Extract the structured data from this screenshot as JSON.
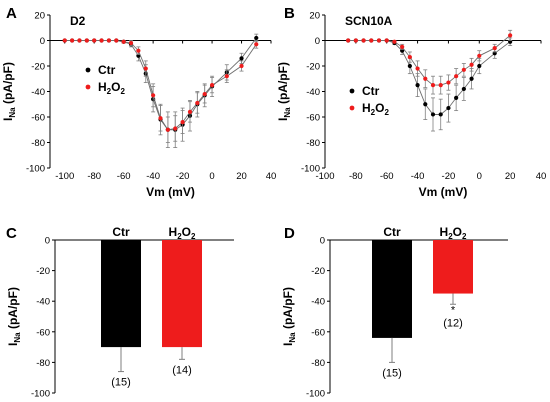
{
  "colors": {
    "ctr": "#000000",
    "h2o2": "#ee1c1c",
    "axis": "#000000",
    "errbar": "#7f7f7f"
  },
  "panels": {
    "A": "A",
    "B": "B",
    "C": "C",
    "D": "D"
  },
  "chart_data": [
    {
      "id": "A",
      "type": "line",
      "title": "D2",
      "xlabel": "Vm (mV)",
      "ylabel_main": "I",
      "ylabel_sub": "Na",
      "ylabel_rest": " (pA/pF)",
      "xlim": [
        -110,
        40
      ],
      "ylim": [
        -100,
        20
      ],
      "xticks": [
        -100,
        -80,
        -60,
        -40,
        -20,
        0,
        20,
        40
      ],
      "yticks": [
        20,
        0,
        -20,
        -40,
        -60,
        -80,
        -100
      ],
      "legend": [
        "Ctr",
        "H2O2"
      ],
      "series": [
        {
          "name": "Ctr",
          "x": [
            -100,
            -95,
            -90,
            -85,
            -80,
            -75,
            -70,
            -65,
            -60,
            -55,
            -50,
            -45,
            -40,
            -35,
            -30,
            -25,
            -20,
            -15,
            -10,
            -5,
            0,
            10,
            20,
            30
          ],
          "y": [
            0,
            0,
            0,
            0,
            0,
            0,
            0,
            0,
            -1,
            -3,
            -12,
            -26,
            -46,
            -62,
            -70,
            -70,
            -66,
            -59,
            -50,
            -43,
            -36,
            -25,
            -14,
            2
          ],
          "err": [
            0,
            0,
            0,
            0,
            0,
            0,
            0,
            0,
            1,
            2,
            4,
            7,
            10,
            12,
            14,
            14,
            13,
            12,
            10,
            9,
            8,
            6,
            4,
            3
          ]
        },
        {
          "name": "H2O2",
          "x": [
            -100,
            -95,
            -90,
            -85,
            -80,
            -75,
            -70,
            -65,
            -60,
            -55,
            -50,
            -45,
            -40,
            -35,
            -30,
            -25,
            -20,
            -15,
            -10,
            -5,
            0,
            10,
            20,
            30
          ],
          "y": [
            0,
            0,
            0,
            0,
            0,
            0,
            0,
            0,
            -1,
            -2,
            -8,
            -22,
            -43,
            -61,
            -70,
            -69,
            -64,
            -56,
            -49,
            -42,
            -35,
            -28,
            -20,
            -3
          ],
          "err": [
            0,
            0,
            0,
            0,
            0,
            0,
            0,
            0,
            1,
            2,
            3,
            6,
            9,
            10,
            10,
            10,
            9,
            8,
            8,
            7,
            6,
            5,
            4,
            3
          ]
        }
      ]
    },
    {
      "id": "B",
      "type": "line",
      "title": "SCN10A",
      "xlabel": "Vm (mV)",
      "ylabel_main": "I",
      "ylabel_sub": "Na",
      "ylabel_rest": " (pA/pF)",
      "xlim": [
        -100,
        40
      ],
      "ylim": [
        -100,
        20
      ],
      "xticks": [
        -100,
        -80,
        -60,
        -40,
        -20,
        0,
        20,
        40
      ],
      "yticks": [
        20,
        0,
        -20,
        -40,
        -60,
        -80,
        -100
      ],
      "legend": [
        "Ctr",
        "H2O2"
      ],
      "series": [
        {
          "name": "Ctr",
          "x": [
            -85,
            -80,
            -75,
            -70,
            -65,
            -60,
            -55,
            -50,
            -45,
            -40,
            -35,
            -30,
            -25,
            -20,
            -15,
            -10,
            -5,
            0,
            10,
            20
          ],
          "y": [
            0,
            0,
            0,
            0,
            0,
            0,
            -2,
            -8,
            -20,
            -35,
            -50,
            -58,
            -58,
            -53,
            -45,
            -38,
            -30,
            -20,
            -10,
            -1
          ],
          "err": [
            0,
            0,
            0,
            0,
            0,
            0,
            1,
            3,
            6,
            9,
            12,
            13,
            12,
            11,
            10,
            9,
            8,
            6,
            4,
            3
          ]
        },
        {
          "name": "H2O2",
          "x": [
            -85,
            -80,
            -75,
            -70,
            -65,
            -60,
            -55,
            -50,
            -45,
            -40,
            -35,
            -30,
            -25,
            -20,
            -15,
            -10,
            -5,
            0,
            10,
            20
          ],
          "y": [
            0,
            0,
            0,
            0,
            0,
            0,
            -1,
            -5,
            -13,
            -22,
            -30,
            -35,
            -35,
            -33,
            -28,
            -23,
            -19,
            -12,
            -6,
            4
          ],
          "err": [
            0,
            0,
            0,
            0,
            0,
            0,
            1,
            2,
            4,
            6,
            7,
            7,
            7,
            6,
            6,
            5,
            5,
            4,
            3,
            4
          ]
        }
      ]
    },
    {
      "id": "C",
      "type": "bar",
      "categories": [
        "Ctr",
        "H2O2"
      ],
      "values": [
        -70,
        -70
      ],
      "errors": [
        16,
        8
      ],
      "n_labels": [
        "(15)",
        "(14)"
      ],
      "sig": [
        "",
        ""
      ],
      "ylabel_main": "I",
      "ylabel_sub": "Na",
      "ylabel_rest": " (pA/pF)",
      "ylim": [
        -100,
        0
      ],
      "yticks": [
        0,
        -20,
        -40,
        -60,
        -80,
        -100
      ]
    },
    {
      "id": "D",
      "type": "bar",
      "categories": [
        "Ctr",
        "H2O2"
      ],
      "values": [
        -64,
        -35
      ],
      "errors": [
        16,
        7
      ],
      "n_labels": [
        "(15)",
        "(12)"
      ],
      "sig": [
        "",
        "*"
      ],
      "ylabel_main": "I",
      "ylabel_sub": "Na",
      "ylabel_rest": " (pA/pF)",
      "ylim": [
        -100,
        0
      ],
      "yticks": [
        0,
        -20,
        -40,
        -60,
        -80,
        -100
      ]
    }
  ]
}
